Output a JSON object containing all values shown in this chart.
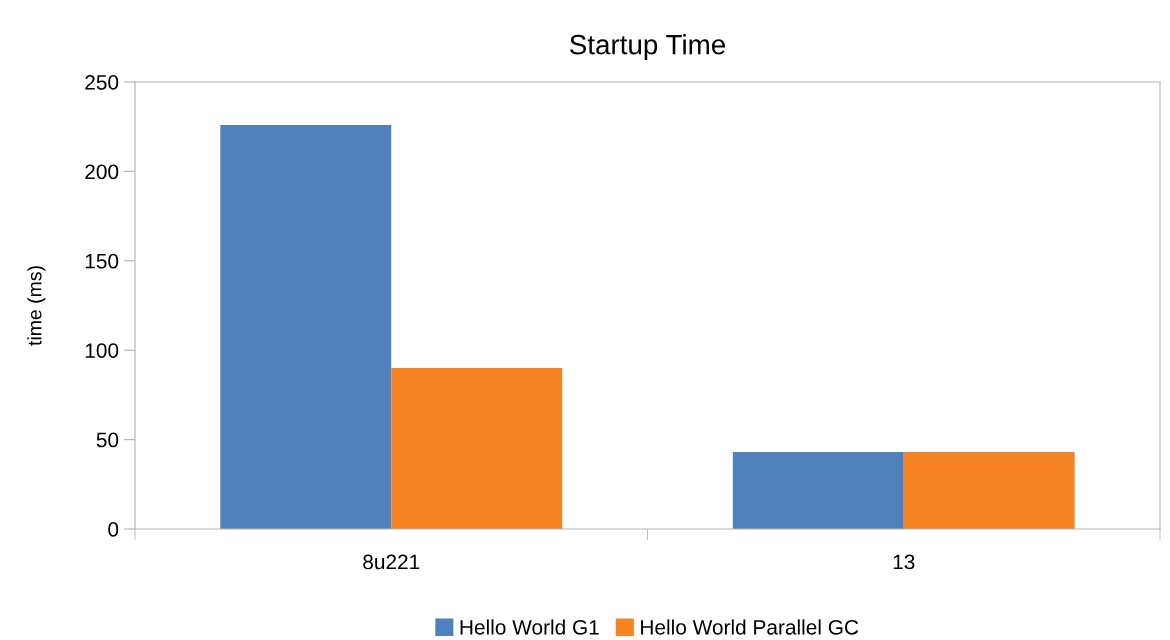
{
  "chart_data": {
    "type": "bar",
    "title": "Startup Time",
    "ylabel": "time (ms)",
    "categories": [
      "8u221",
      "13"
    ],
    "series": [
      {
        "name": "Hello World G1",
        "color": "#4f81bd",
        "values": [
          226,
          43
        ]
      },
      {
        "name": "Hello World Parallel GC",
        "color": "#f58322",
        "values": [
          90,
          43
        ]
      }
    ],
    "ylim": [
      0,
      250
    ],
    "yticks": [
      0,
      50,
      100,
      150,
      200,
      250
    ],
    "grid": false,
    "legend": "bottom"
  }
}
